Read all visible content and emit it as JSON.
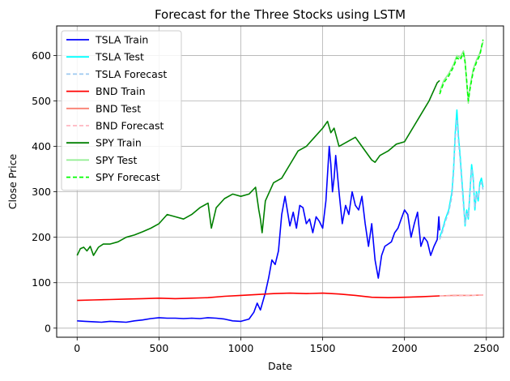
{
  "chart_data": {
    "type": "line",
    "title": "Forecast for the Three Stocks using LSTM",
    "xlabel": "Date",
    "ylabel": "Close Price",
    "xlim": [
      -125,
      2605
    ],
    "ylim": [
      -20,
      665
    ],
    "xticks": [
      0,
      500,
      1000,
      1500,
      2000,
      2500
    ],
    "yticks": [
      0,
      100,
      200,
      300,
      400,
      500,
      600
    ],
    "grid": true,
    "legend_position": "upper-left",
    "series": [
      {
        "name": "TSLA Train",
        "color": "#0000ff",
        "dash": "solid",
        "x": [
          0,
          50,
          100,
          150,
          200,
          250,
          300,
          350,
          400,
          450,
          500,
          550,
          600,
          650,
          700,
          750,
          800,
          850,
          900,
          950,
          1000,
          1050,
          1080,
          1100,
          1120,
          1150,
          1170,
          1190,
          1210,
          1230,
          1250,
          1270,
          1300,
          1320,
          1340,
          1360,
          1380,
          1400,
          1420,
          1440,
          1460,
          1480,
          1500,
          1520,
          1540,
          1550,
          1560,
          1570,
          1580,
          1600,
          1620,
          1640,
          1660,
          1680,
          1700,
          1720,
          1740,
          1760,
          1780,
          1800,
          1820,
          1840,
          1860,
          1880,
          1900,
          1920,
          1940,
          1960,
          1980,
          2000,
          2020,
          2040,
          2060,
          2080,
          2100,
          2120,
          2140,
          2160,
          2180,
          2200,
          2210,
          2215
        ],
        "y": [
          16,
          15,
          14,
          13,
          15,
          14,
          13,
          16,
          18,
          21,
          23,
          22,
          22,
          21,
          22,
          21,
          23,
          22,
          20,
          16,
          15,
          20,
          35,
          55,
          40,
          78,
          110,
          150,
          140,
          170,
          250,
          290,
          225,
          255,
          220,
          270,
          265,
          230,
          240,
          210,
          245,
          235,
          220,
          280,
          400,
          360,
          300,
          330,
          380,
          300,
          230,
          270,
          250,
          300,
          270,
          260,
          290,
          230,
          180,
          230,
          150,
          110,
          160,
          180,
          185,
          190,
          210,
          220,
          240,
          260,
          250,
          200,
          230,
          255,
          180,
          200,
          190,
          160,
          180,
          195,
          245,
          215
        ]
      },
      {
        "name": "TSLA Test",
        "color": "#00ffff",
        "dash": "solid",
        "x": [
          2215,
          2230,
          2250,
          2270,
          2290,
          2300,
          2310,
          2320,
          2330,
          2340,
          2350,
          2360,
          2370,
          2380,
          2390,
          2400,
          2410,
          2420,
          2430,
          2440,
          2450,
          2460,
          2470,
          2480
        ],
        "y": [
          200,
          215,
          240,
          260,
          300,
          350,
          430,
          480,
          420,
          380,
          330,
          280,
          225,
          260,
          240,
          300,
          360,
          330,
          260,
          300,
          280,
          320,
          330,
          310
        ]
      },
      {
        "name": "TSLA Forecast",
        "color": "#9ec9f0",
        "dash": "dashed",
        "x": [
          2215,
          2230,
          2250,
          2270,
          2290,
          2300,
          2310,
          2320,
          2330,
          2340,
          2350,
          2360,
          2370,
          2380,
          2390,
          2400,
          2410,
          2420,
          2430,
          2440,
          2450,
          2460,
          2470,
          2480
        ],
        "y": [
          195,
          210,
          235,
          255,
          290,
          340,
          420,
          460,
          410,
          370,
          320,
          270,
          230,
          255,
          245,
          295,
          350,
          325,
          265,
          295,
          285,
          315,
          320,
          305
        ]
      },
      {
        "name": "BND Train",
        "color": "#ff0000",
        "dash": "solid",
        "x": [
          0,
          100,
          200,
          300,
          400,
          500,
          600,
          700,
          800,
          900,
          1000,
          1100,
          1200,
          1300,
          1400,
          1500,
          1600,
          1700,
          1800,
          1900,
          2000,
          2100,
          2215
        ],
        "y": [
          61,
          62,
          63,
          64,
          65,
          66,
          65,
          66,
          67,
          70,
          72,
          74,
          76,
          77,
          76,
          77,
          75,
          72,
          68,
          67,
          68,
          69,
          71
        ]
      },
      {
        "name": "BND Test",
        "color": "#fa8072",
        "dash": "solid",
        "x": [
          2215,
          2300,
          2400,
          2480
        ],
        "y": [
          71,
          72,
          72,
          73
        ]
      },
      {
        "name": "BND Forecast",
        "color": "#ffb6c1",
        "dash": "dashed",
        "x": [
          2215,
          2300,
          2400,
          2480
        ],
        "y": [
          71,
          71,
          72,
          73
        ]
      },
      {
        "name": "SPY Train",
        "color": "#008000",
        "dash": "solid",
        "x": [
          0,
          20,
          40,
          60,
          80,
          100,
          130,
          160,
          200,
          250,
          300,
          350,
          400,
          450,
          500,
          550,
          600,
          650,
          700,
          750,
          800,
          820,
          850,
          900,
          950,
          1000,
          1050,
          1090,
          1110,
          1120,
          1130,
          1150,
          1200,
          1250,
          1300,
          1350,
          1400,
          1450,
          1500,
          1530,
          1550,
          1570,
          1600,
          1650,
          1700,
          1750,
          1800,
          1820,
          1850,
          1900,
          1950,
          2000,
          2050,
          2100,
          2150,
          2200,
          2215
        ],
        "y": [
          160,
          175,
          178,
          170,
          180,
          160,
          178,
          185,
          185,
          190,
          200,
          205,
          212,
          220,
          230,
          250,
          245,
          240,
          250,
          265,
          275,
          220,
          265,
          285,
          295,
          290,
          295,
          310,
          260,
          240,
          210,
          280,
          320,
          330,
          360,
          390,
          400,
          420,
          440,
          455,
          430,
          440,
          400,
          410,
          420,
          395,
          370,
          365,
          380,
          390,
          405,
          410,
          440,
          470,
          500,
          540,
          545
        ]
      },
      {
        "name": "SPY Test",
        "color": "#90ee90",
        "dash": "solid",
        "x": [
          2215,
          2240,
          2270,
          2300,
          2320,
          2340,
          2360,
          2370,
          2380,
          2390,
          2400,
          2420,
          2440,
          2460,
          2480
        ],
        "y": [
          520,
          545,
          560,
          580,
          600,
          595,
          610,
          590,
          540,
          495,
          530,
          570,
          590,
          605,
          630
        ]
      },
      {
        "name": "SPY Forecast",
        "color": "#00ff00",
        "dash": "dashed",
        "x": [
          2215,
          2240,
          2270,
          2300,
          2320,
          2340,
          2360,
          2370,
          2380,
          2390,
          2400,
          2420,
          2440,
          2460,
          2480
        ],
        "y": [
          515,
          540,
          555,
          575,
          595,
          590,
          605,
          585,
          545,
          500,
          525,
          565,
          585,
          600,
          635
        ]
      }
    ]
  }
}
